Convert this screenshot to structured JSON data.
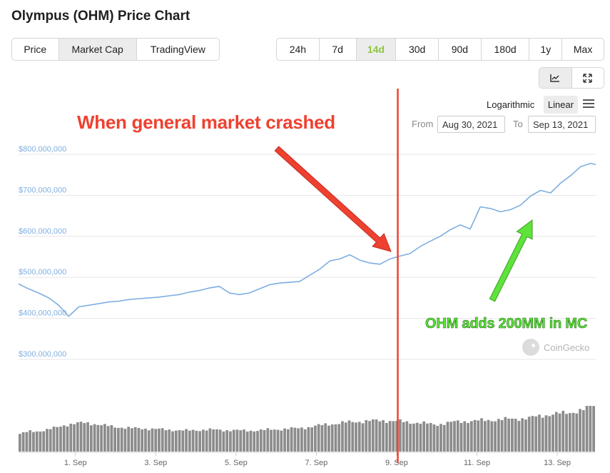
{
  "page": {
    "title": "Olympus (OHM) Price Chart"
  },
  "type_tabs": [
    {
      "label": "Price",
      "active": false
    },
    {
      "label": "Market Cap",
      "active": true
    },
    {
      "label": "TradingView",
      "active": false
    }
  ],
  "range_tabs": [
    {
      "label": "24h",
      "active": false
    },
    {
      "label": "7d",
      "active": false
    },
    {
      "label": "14d",
      "active": true
    },
    {
      "label": "30d",
      "active": false
    },
    {
      "label": "90d",
      "active": false
    },
    {
      "label": "180d",
      "active": false
    },
    {
      "label": "1y",
      "active": false
    },
    {
      "label": "Max",
      "active": false
    }
  ],
  "view_icons": [
    {
      "name": "line-chart-icon",
      "active": true
    },
    {
      "name": "expand-icon",
      "active": false
    }
  ],
  "scale": {
    "logarithmic": "Logarithmic",
    "linear": "Linear",
    "selected": "Linear"
  },
  "date_range": {
    "from_label": "From",
    "from_value": "Aug 30, 2021",
    "to_label": "To",
    "to_value": "Sep 13, 2021"
  },
  "annotations": {
    "red": "When general market crashed",
    "green": "OHM adds 200MM in MC"
  },
  "watermark": "CoinGecko",
  "colors": {
    "line": "#7eaee0",
    "axis_label": "#7eaee0",
    "volume": "#8c8c8c",
    "grid": "#e6e6e6",
    "red_annotation": "#ef4130",
    "green_annotation": "#5ee33b",
    "active_tab_text": "#8dc63f"
  },
  "chart_data": {
    "type": "line",
    "title": "",
    "yaxis_ticks": [
      "$300,000,000",
      "$400,000,000",
      "$500,000,000",
      "$600,000,000",
      "$700,000,000",
      "$800,000,000"
    ],
    "ylim": [
      240000000,
      820000000
    ],
    "xaxis_ticks": [
      "1. Sep",
      "3. Sep",
      "5. Sep",
      "7. Sep",
      "9. Sep",
      "11. Sep",
      "13. Sep"
    ],
    "x_start": "2021-08-30T14:00",
    "x_end": "2021-09-13T23:00",
    "series": [
      {
        "values": [
          [
            "2021-08-30T14:00",
            484000000
          ],
          [
            "2021-08-30T20:00",
            472000000
          ],
          [
            "2021-08-31T02:00",
            462000000
          ],
          [
            "2021-08-31T08:00",
            450000000
          ],
          [
            "2021-08-31T14:00",
            432000000
          ],
          [
            "2021-08-31T20:00",
            405000000
          ],
          [
            "2021-09-01T02:00",
            428000000
          ],
          [
            "2021-09-01T08:00",
            432000000
          ],
          [
            "2021-09-01T14:00",
            436000000
          ],
          [
            "2021-09-01T20:00",
            440000000
          ],
          [
            "2021-09-02T02:00",
            442000000
          ],
          [
            "2021-09-02T08:00",
            446000000
          ],
          [
            "2021-09-02T14:00",
            448000000
          ],
          [
            "2021-09-02T20:00",
            450000000
          ],
          [
            "2021-09-03T02:00",
            452000000
          ],
          [
            "2021-09-03T08:00",
            455000000
          ],
          [
            "2021-09-03T14:00",
            458000000
          ],
          [
            "2021-09-03T20:00",
            464000000
          ],
          [
            "2021-09-04T02:00",
            468000000
          ],
          [
            "2021-09-04T08:00",
            474000000
          ],
          [
            "2021-09-04T14:00",
            478000000
          ],
          [
            "2021-09-04T20:00",
            462000000
          ],
          [
            "2021-09-05T02:00",
            458000000
          ],
          [
            "2021-09-05T08:00",
            462000000
          ],
          [
            "2021-09-05T14:00",
            472000000
          ],
          [
            "2021-09-05T20:00",
            482000000
          ],
          [
            "2021-09-06T02:00",
            486000000
          ],
          [
            "2021-09-06T08:00",
            488000000
          ],
          [
            "2021-09-06T14:00",
            490000000
          ],
          [
            "2021-09-06T20:00",
            505000000
          ],
          [
            "2021-09-07T02:00",
            520000000
          ],
          [
            "2021-09-07T08:00",
            540000000
          ],
          [
            "2021-09-07T14:00",
            545000000
          ],
          [
            "2021-09-07T20:00",
            555000000
          ],
          [
            "2021-09-08T02:00",
            542000000
          ],
          [
            "2021-09-08T08:00",
            535000000
          ],
          [
            "2021-09-08T14:00",
            532000000
          ],
          [
            "2021-09-08T20:00",
            545000000
          ],
          [
            "2021-09-09T02:00",
            552000000
          ],
          [
            "2021-09-09T08:00",
            558000000
          ],
          [
            "2021-09-09T14:00",
            575000000
          ],
          [
            "2021-09-09T20:00",
            588000000
          ],
          [
            "2021-09-10T02:00",
            600000000
          ],
          [
            "2021-09-10T08:00",
            616000000
          ],
          [
            "2021-09-10T14:00",
            628000000
          ],
          [
            "2021-09-10T20:00",
            618000000
          ],
          [
            "2021-09-11T02:00",
            672000000
          ],
          [
            "2021-09-11T08:00",
            668000000
          ],
          [
            "2021-09-11T14:00",
            660000000
          ],
          [
            "2021-09-11T20:00",
            665000000
          ],
          [
            "2021-09-12T02:00",
            676000000
          ],
          [
            "2021-09-12T08:00",
            698000000
          ],
          [
            "2021-09-12T14:00",
            712000000
          ],
          [
            "2021-09-12T20:00",
            706000000
          ],
          [
            "2021-09-13T02:00",
            730000000
          ],
          [
            "2021-09-13T08:00",
            748000000
          ],
          [
            "2021-09-13T14:00",
            770000000
          ],
          [
            "2021-09-13T20:00",
            778000000
          ],
          [
            "2021-09-13T23:00",
            775000000
          ]
        ]
      }
    ],
    "volume": {
      "values": [
        0.38,
        0.43,
        0.44,
        0.47,
        0.52,
        0.58,
        0.6,
        0.62,
        0.6,
        0.56,
        0.54,
        0.52,
        0.5,
        0.5,
        0.49,
        0.48,
        0.47,
        0.46,
        0.45,
        0.46,
        0.47,
        0.47,
        0.46,
        0.46,
        0.45,
        0.45,
        0.46,
        0.47,
        0.48,
        0.49,
        0.5,
        0.52,
        0.55,
        0.58,
        0.6,
        0.62,
        0.64,
        0.65,
        0.66,
        0.67,
        0.66,
        0.65,
        0.63,
        0.62,
        0.6,
        0.58,
        0.61,
        0.64,
        0.65,
        0.66,
        0.67,
        0.68,
        0.69,
        0.7,
        0.71,
        0.72,
        0.76,
        0.79,
        0.81,
        0.83,
        0.86,
        0.9,
        1.0
      ],
      "ylabel": ""
    },
    "vertical_marker": {
      "x": "2021-09-09T00:40",
      "color": "#ef4130"
    },
    "grid": true,
    "legend": "none"
  }
}
